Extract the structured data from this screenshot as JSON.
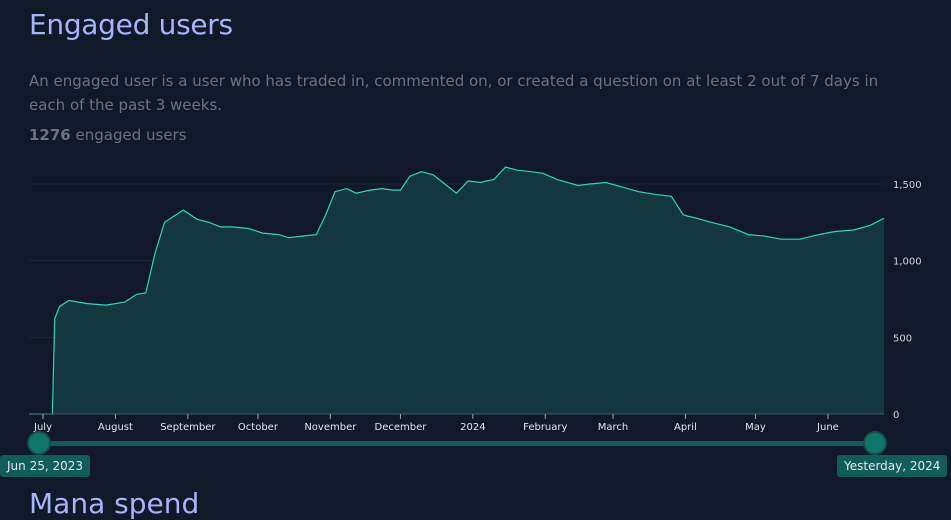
{
  "title": "Engaged users",
  "description": "An engaged user is a user who has traded in, commented on, or created a question on at least 2 out of 7 days in each of the past 3 weeks.",
  "summary": {
    "count": "1276",
    "suffix": " engaged users"
  },
  "range_slider": {
    "start_label": "Jun 25, 2023",
    "end_label": "Yesterday, 2024"
  },
  "next_section_title": "Mana spend",
  "colors": {
    "background": "#111827",
    "line": "#2dd4bf",
    "fill": "#12383d",
    "grid": "#1f2937",
    "accent_title": "#a5b4fc"
  },
  "chart_data": {
    "type": "area",
    "title": "",
    "xlabel": "",
    "ylabel": "",
    "x_tick_labels": [
      "July",
      "August",
      "September",
      "October",
      "November",
      "December",
      "2024",
      "February",
      "March",
      "April",
      "May",
      "June"
    ],
    "y_tick_labels": [
      "0",
      "500",
      "1,000",
      "1,500"
    ],
    "ylim": [
      0,
      1500
    ],
    "grid": true,
    "y_axis_side": "right",
    "series": [
      {
        "x": [
          "2023-06-25",
          "2023-07-05",
          "2023-07-06",
          "2023-07-08",
          "2023-07-12",
          "2023-07-20",
          "2023-07-28",
          "2023-08-05",
          "2023-08-10",
          "2023-08-14",
          "2023-08-18",
          "2023-08-22",
          "2023-08-30",
          "2023-09-05",
          "2023-09-10",
          "2023-09-15",
          "2023-09-20",
          "2023-09-27",
          "2023-10-03",
          "2023-10-10",
          "2023-10-14",
          "2023-10-20",
          "2023-10-26",
          "2023-10-30",
          "2023-11-03",
          "2023-11-08",
          "2023-11-12",
          "2023-11-18",
          "2023-11-23",
          "2023-11-28",
          "2023-12-01",
          "2023-12-05",
          "2023-12-10",
          "2023-12-15",
          "2023-12-20",
          "2023-12-25",
          "2023-12-30",
          "2024-01-04",
          "2024-01-10",
          "2024-01-15",
          "2024-01-20",
          "2024-01-26",
          "2024-01-31",
          "2024-02-06",
          "2024-02-15",
          "2024-02-20",
          "2024-02-27",
          "2024-03-05",
          "2024-03-12",
          "2024-03-20",
          "2024-03-26",
          "2024-03-31",
          "2024-04-02",
          "2024-04-05",
          "2024-04-12",
          "2024-04-20",
          "2024-04-28",
          "2024-05-05",
          "2024-05-12",
          "2024-05-20",
          "2024-05-28",
          "2024-06-04",
          "2024-06-12",
          "2024-06-19",
          "2024-06-25"
        ],
        "values": [
          0,
          0,
          620,
          700,
          740,
          720,
          710,
          730,
          780,
          790,
          1050,
          1250,
          1330,
          1270,
          1250,
          1220,
          1220,
          1210,
          1180,
          1170,
          1150,
          1160,
          1170,
          1300,
          1450,
          1470,
          1440,
          1460,
          1470,
          1460,
          1460,
          1550,
          1580,
          1560,
          1500,
          1440,
          1520,
          1510,
          1530,
          1610,
          1590,
          1580,
          1570,
          1530,
          1490,
          1500,
          1510,
          1480,
          1450,
          1430,
          1420,
          1300,
          1290,
          1280,
          1250,
          1220,
          1170,
          1160,
          1140,
          1140,
          1170,
          1190,
          1200,
          1230,
          1276
        ]
      }
    ]
  }
}
